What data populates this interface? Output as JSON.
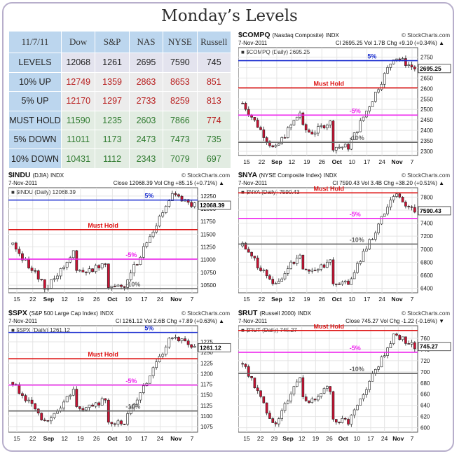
{
  "title": "Monday’s Levels",
  "levels_table": {
    "date": "11/7/11",
    "columns": [
      "Dow",
      "S&P",
      "NAS",
      "NYSE",
      "Russell"
    ],
    "rows": [
      {
        "label": "LEVELS",
        "values": [
          "12068",
          "1261",
          "2695",
          "7590",
          "745"
        ]
      },
      {
        "label": "10% UP",
        "values": [
          "12749",
          "1359",
          "2863",
          "8653",
          "851"
        ]
      },
      {
        "label": "5% UP",
        "values": [
          "12170",
          "1297",
          "2733",
          "8259",
          "813"
        ]
      },
      {
        "label": "MUST HOLD",
        "values": [
          "11590",
          "1235",
          "2603",
          "7866",
          "774"
        ]
      },
      {
        "label": "5% DOWN",
        "values": [
          "11011",
          "1173",
          "2473",
          "7473",
          "735"
        ]
      },
      {
        "label": "10% DOWN",
        "values": [
          "10431",
          "1112",
          "2343",
          "7079",
          "697"
        ]
      }
    ]
  },
  "colors": {
    "up": "#b81d1d",
    "hold": "#2f7a2f",
    "blue": "#1c2fd0",
    "red": "#dd1111",
    "magenta": "#ee22ee",
    "gray": "#666666",
    "candle_up": "#ffffff",
    "candle_down": "#cc1133"
  },
  "chart_data": [
    {
      "id": "compq",
      "type": "candlestick",
      "symbol": "$COMPQ",
      "name": "(Nasdaq Composite)",
      "exchange": "INDX",
      "watermark": "© StockCharts.com",
      "date": "7-Nov-2011",
      "info": "Cl 2695.25  Vol 1.7B  Chg +9.10 (+0.34%) ▲",
      "legend": "■ $COMPQ (Daily) 2695.25",
      "last_label": "2695.25",
      "yticks": [
        2300,
        2350,
        2400,
        2450,
        2500,
        2550,
        2600,
        2650,
        2700,
        2750
      ],
      "ylim": [
        2280,
        2775
      ],
      "xlabels": [
        "15",
        "22",
        "Sep",
        "12",
        "19",
        "26",
        "Oct",
        "10",
        "17",
        "24",
        "Nov",
        "7"
      ],
      "lines": [
        {
          "value": 2733,
          "label": "5%",
          "color": "blue"
        },
        {
          "value": 2603,
          "label": "Must Hold",
          "color": "red"
        },
        {
          "value": 2473,
          "label": "-5%",
          "color": "magenta"
        },
        {
          "value": 2343,
          "label": "-10%",
          "color": "gray"
        }
      ],
      "start": 2530,
      "end": 2695.25,
      "lo": 2298,
      "hi": 2755
    },
    {
      "id": "indu",
      "type": "candlestick",
      "symbol": "$INDU",
      "name": "(DJIA)",
      "exchange": "INDX",
      "watermark": "© StockCharts.com",
      "date": "7-Nov-2011",
      "info": "Close 12068.39  Vol  Chg +85.15 (+0.71%) ▲",
      "legend": "■ $INDU (Daily) 12068.39",
      "last_label": "12068.39",
      "yticks": [
        10500,
        10750,
        11000,
        11250,
        11500,
        11750,
        12000,
        12250
      ],
      "ylim": [
        10350,
        12330
      ],
      "xlabels": [
        "15",
        "22",
        "Sep",
        "12",
        "19",
        "26",
        "Oct",
        "10",
        "17",
        "24",
        "Nov",
        "7"
      ],
      "lines": [
        {
          "value": 12170,
          "label": "5%",
          "color": "blue"
        },
        {
          "value": 11590,
          "label": "Must Hold",
          "color": "red"
        },
        {
          "value": 11011,
          "label": "-5%",
          "color": "magenta"
        },
        {
          "value": 10431,
          "label": "-10%",
          "color": "gray"
        }
      ],
      "start": 11300,
      "end": 12068.39,
      "lo": 10405,
      "hi": 12284
    },
    {
      "id": "nya",
      "type": "candlestick",
      "symbol": "$NYA",
      "name": "(NYSE Composite Index)",
      "exchange": "INDX",
      "watermark": "© StockCharts.com",
      "date": "7-Nov-2011",
      "info": "Cl 7590.43  Vol 3.4B  Chg +38.20 (+0.51%) ▲",
      "legend": "■ $NYA (Daily) 7590.43",
      "last_label": "7590.43",
      "yticks": [
        6400,
        6600,
        6800,
        7000,
        7200,
        7400,
        7600,
        7800
      ],
      "ylim": [
        6330,
        7880
      ],
      "xlabels": [
        "15",
        "22",
        "Sep",
        "12",
        "19",
        "26",
        "Oct",
        "10",
        "17",
        "24",
        "Nov",
        "7"
      ],
      "lines": [
        {
          "value": 7866,
          "label": "",
          "color": "red"
        },
        {
          "value": 7866,
          "label": "Must Hold",
          "color": "none"
        },
        {
          "value": 7473,
          "label": "-5%",
          "color": "magenta"
        },
        {
          "value": 7079,
          "label": "-10%",
          "color": "gray"
        }
      ],
      "start": 7050,
      "end": 7590.43,
      "lo": 6420,
      "hi": 7830
    },
    {
      "id": "spx",
      "type": "candlestick",
      "symbol": "$SPX",
      "name": "(S&P 500 Large Cap Index)",
      "exchange": "INDX",
      "watermark": "© StockCharts.com",
      "date": "7-Nov-2011",
      "info": "Cl 1261.12  Vol 2.6B  Chg +7.89 (+0.63%) ▲",
      "legend": "■ $SPX (Daily) 1261.12",
      "last_label": "1261.12",
      "yticks": [
        1075,
        1100,
        1125,
        1150,
        1175,
        1200,
        1225,
        1250,
        1275
      ],
      "ylim": [
        1062,
        1303
      ],
      "xlabels": [
        "15",
        "22",
        "Sep",
        "12",
        "19",
        "26",
        "Oct",
        "10",
        "17",
        "24",
        "Nov",
        "7"
      ],
      "lines": [
        {
          "value": 1297,
          "label": "5%",
          "color": "blue"
        },
        {
          "value": 1235,
          "label": "Must Hold",
          "color": "red"
        },
        {
          "value": 1173,
          "label": "-5%",
          "color": "magenta"
        },
        {
          "value": 1112,
          "label": "-10%",
          "color": "gray"
        }
      ],
      "start": 1180,
      "end": 1261.12,
      "lo": 1075,
      "hi": 1292
    },
    {
      "id": "rut",
      "type": "candlestick",
      "symbol": "$RUT",
      "name": "(Russell 2000)",
      "exchange": "INDX",
      "watermark": "© StockCharts.com",
      "date": "7-Nov-2011",
      "info": "Close 745.27  Vol  Chg -1.22 (-0.16%) ▼",
      "legend": "■ $RUT (Daily) 745.27",
      "last_label": "745.27",
      "yticks": [
        600,
        620,
        640,
        660,
        680,
        700,
        720,
        740,
        760
      ],
      "ylim": [
        592,
        775
      ],
      "xlabels": [
        "15",
        "22",
        "29",
        "Sep",
        "12",
        "19",
        "26",
        "Oct",
        "10",
        "17",
        "24",
        "Nov",
        "7"
      ],
      "lines": [
        {
          "value": 774,
          "label": "Must Hold",
          "color": "red"
        },
        {
          "value": 735,
          "label": "-5%",
          "color": "magenta"
        },
        {
          "value": 697,
          "label": "-10%",
          "color": "gray"
        }
      ],
      "start": 715,
      "end": 745.27,
      "lo": 602,
      "hi": 766
    }
  ]
}
